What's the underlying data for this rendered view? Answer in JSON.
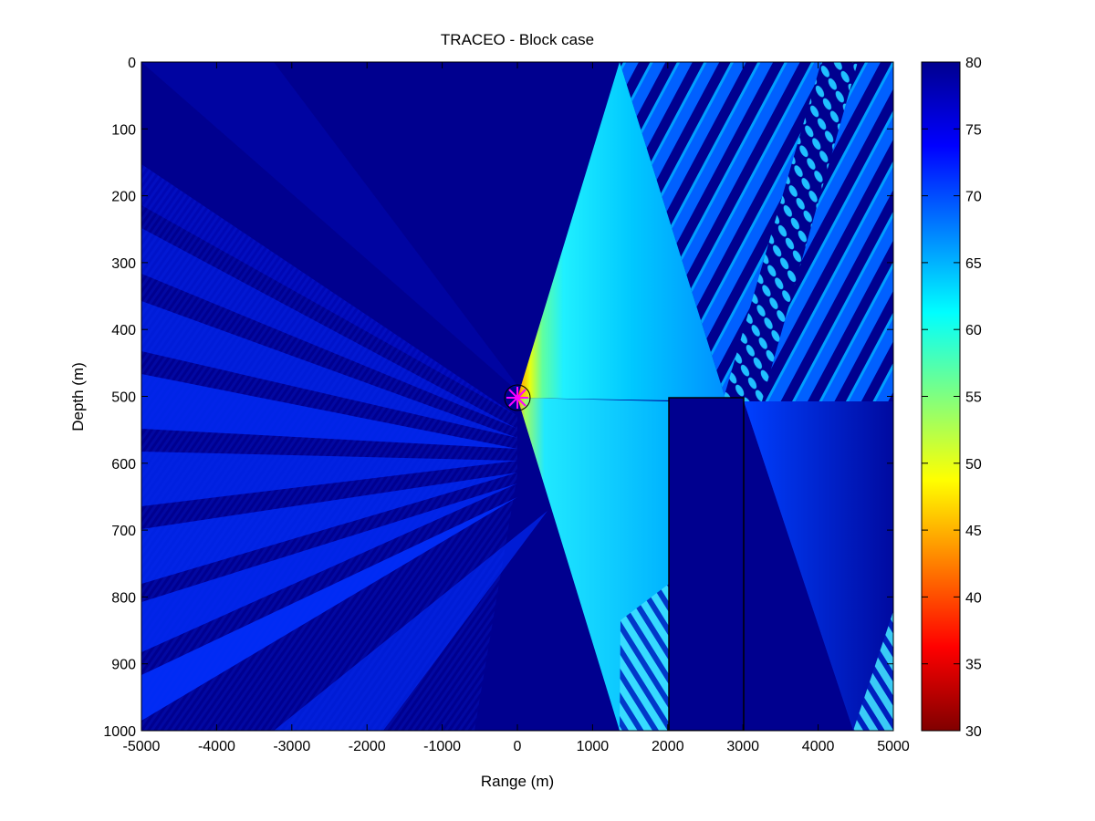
{
  "chart_data": {
    "type": "heatmap",
    "title": "TRACEO - Block case",
    "xlabel": "Range (m)",
    "ylabel": "Depth (m)",
    "xlim": [
      -5000,
      5000
    ],
    "ylim": [
      0,
      1000
    ],
    "y_reversed": true,
    "x_ticks": [
      "-5000",
      "-4000",
      "-3000",
      "-2000",
      "-1000",
      "0",
      "1000",
      "2000",
      "3000",
      "4000",
      "5000"
    ],
    "y_ticks": [
      "0",
      "100",
      "200",
      "300",
      "400",
      "500",
      "600",
      "700",
      "800",
      "900",
      "1000"
    ],
    "colorbar": {
      "colormap": "jet",
      "reversed": true,
      "min": 30,
      "max": 80,
      "ticks": [
        "30",
        "35",
        "40",
        "45",
        "50",
        "55",
        "60",
        "65",
        "70",
        "75",
        "80"
      ]
    },
    "source": {
      "x": 0,
      "y": 500,
      "marker_color": "#ff00ff"
    },
    "block": {
      "x_range": [
        2000,
        3000
      ],
      "depth_range": [
        500,
        1000
      ]
    }
  }
}
